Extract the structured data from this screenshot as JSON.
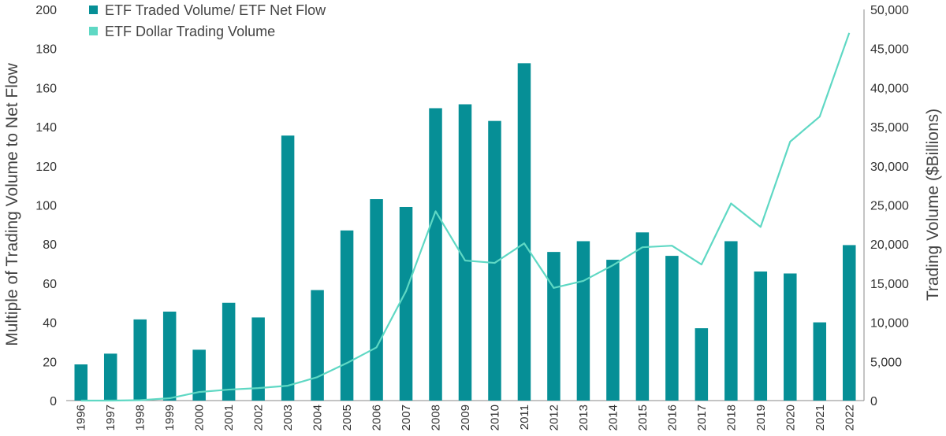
{
  "chart_data": {
    "type": "bar",
    "categories": [
      "1996",
      "1997",
      "1998",
      "1999",
      "2000",
      "2001",
      "2002",
      "2003",
      "2004",
      "2005",
      "2006",
      "2007",
      "2008",
      "2009",
      "2010",
      "2011",
      "2012",
      "2013",
      "2014",
      "2015",
      "2016",
      "2017",
      "2018",
      "2019",
      "2020",
      "2021",
      "2022"
    ],
    "series": [
      {
        "name": "ETF Traded Volume/ ETF Net Flow",
        "type": "bar",
        "axis": "left",
        "color": "#068F96",
        "values": [
          18.5,
          24,
          41.5,
          45.5,
          26,
          50,
          42.5,
          135.5,
          56.5,
          87,
          103,
          99,
          149.5,
          151.5,
          143,
          172.5,
          76,
          81.5,
          72,
          86,
          74,
          37,
          81.5,
          66,
          65,
          40,
          79.5
        ]
      },
      {
        "name": "ETF Dollar Trading Volume",
        "type": "line",
        "axis": "right",
        "color": "#5FD8C4",
        "values": [
          0,
          0,
          50,
          300,
          1100,
          1400,
          1600,
          1900,
          3000,
          4800,
          6800,
          14000,
          24200,
          17900,
          17600,
          20100,
          14400,
          15300,
          17300,
          19600,
          19800,
          17400,
          25200,
          22200,
          33100,
          36300,
          47000
        ]
      }
    ],
    "y_left": {
      "label": "Multiple of Trading Volume to Net Flow",
      "range": [
        0,
        200
      ],
      "ticks": [
        "0",
        "20",
        "40",
        "60",
        "80",
        "100",
        "120",
        "140",
        "160",
        "180",
        "200"
      ]
    },
    "y_right": {
      "label": "Trading Volume ($Billions)",
      "range": [
        0,
        50000
      ],
      "ticks": [
        "0",
        "5,000",
        "10,000",
        "15,000",
        "20,000",
        "25,000",
        "30,000",
        "35,000",
        "40,000",
        "45,000",
        "50,000"
      ]
    },
    "grid": false,
    "legend_position": "top-left"
  }
}
